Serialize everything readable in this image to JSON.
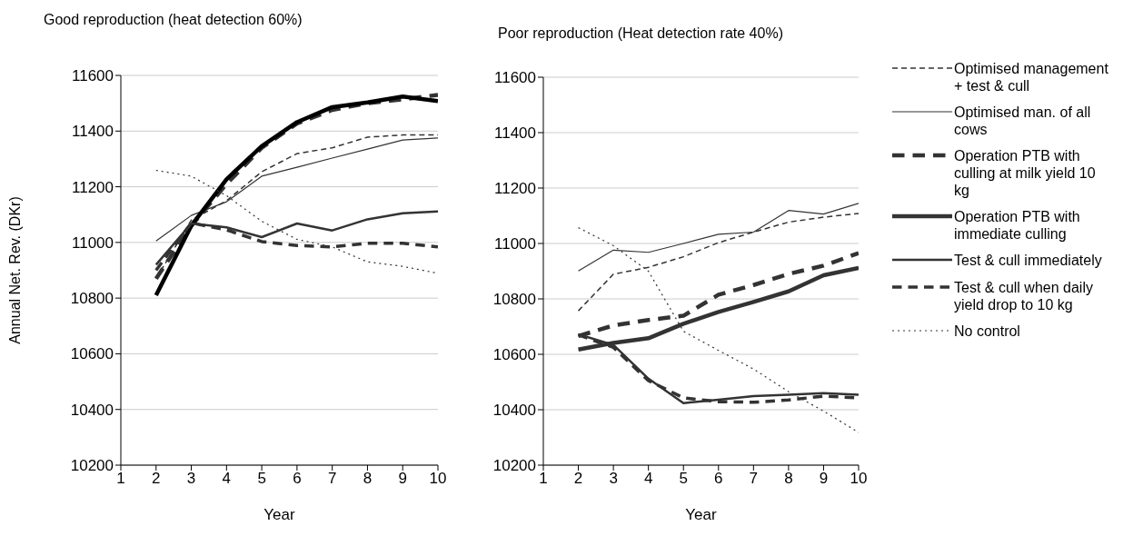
{
  "chart_data": [
    {
      "type": "line",
      "title": "Good reproduction (heat detection 60%)",
      "xlabel": "Year",
      "ylabel": "Annual Net. Rev. (DKr)",
      "x": [
        2,
        3,
        4,
        5,
        6,
        7,
        8,
        9,
        10
      ],
      "xlim": [
        1,
        10
      ],
      "xticks": [
        1,
        2,
        3,
        4,
        5,
        6,
        7,
        8,
        9,
        10
      ],
      "ylim": [
        10200,
        11600
      ],
      "yticks": [
        10200,
        10400,
        10600,
        10800,
        11000,
        11200,
        11400,
        11600
      ],
      "grid": "y",
      "marker": "none",
      "series": [
        {
          "color": "#333333",
          "line_style": "dashed",
          "values": [
            10870,
            11080,
            11150,
            11254,
            11319,
            11340,
            11378,
            11386,
            11386
          ]
        },
        {
          "color": "#333333",
          "line_style": "solid",
          "values": [
            11005,
            11097,
            11146,
            11238,
            11270,
            11303,
            11335,
            11368,
            11375
          ]
        },
        {
          "color": "#333333",
          "line_style": "dashed",
          "values": [
            10870,
            11060,
            11210,
            11340,
            11427,
            11476,
            11500,
            11514,
            11530
          ]
        },
        {
          "color": "#000000",
          "line_style": "solid",
          "values": [
            10810,
            11060,
            11227,
            11346,
            11432,
            11486,
            11503,
            11524,
            11508
          ]
        },
        {
          "color": "#333333",
          "line_style": "solid",
          "values": [
            10920,
            11068,
            11054,
            11019,
            11068,
            11043,
            11083,
            11105,
            11111
          ]
        },
        {
          "color": "#333333",
          "line_style": "dashed",
          "values": [
            10900,
            11070,
            11045,
            11003,
            10989,
            10984,
            10997,
            10997,
            10984
          ]
        },
        {
          "color": "#333333",
          "line_style": "dotted",
          "values": [
            11259,
            11238,
            11168,
            11076,
            11011,
            10984,
            10930,
            10914,
            10889
          ]
        }
      ]
    },
    {
      "type": "line",
      "title": "Poor reproduction (Heat detection rate 40%)",
      "xlabel": "Year",
      "x": [
        2,
        3,
        4,
        5,
        6,
        7,
        8,
        9,
        10
      ],
      "xlim": [
        1,
        10
      ],
      "xticks": [
        1,
        2,
        3,
        4,
        5,
        6,
        7,
        8,
        9,
        10
      ],
      "ylim": [
        10200,
        11600
      ],
      "yticks": [
        10200,
        10400,
        10600,
        10800,
        11000,
        11200,
        11400,
        11600
      ],
      "grid": "y",
      "marker": "none",
      "legend": "right",
      "series": [
        {
          "name": "Optimised management + test & cull",
          "color": "#333333",
          "line_style": "dashed",
          "values": [
            10757,
            10889,
            10914,
            10952,
            11003,
            11041,
            11077,
            11095,
            11108
          ]
        },
        {
          "name": "Optimised man. of all cows",
          "color": "#333333",
          "line_style": "solid",
          "values": [
            10901,
            10976,
            10968,
            11000,
            11033,
            11041,
            11119,
            11106,
            11145
          ]
        },
        {
          "name": "Operation PTB with culling at milk yield 10 kg",
          "color": "#333333",
          "line_style": "dashed",
          "values": [
            10666,
            10704,
            10724,
            10739,
            10815,
            10850,
            10890,
            10920,
            10965
          ]
        },
        {
          "name": "Operation PTB with immediate culling",
          "color": "#333333",
          "line_style": "solid",
          "values": [
            10617,
            10641,
            10658,
            10710,
            10753,
            10789,
            10827,
            10885,
            10912
          ]
        },
        {
          "name": "Test & cull immediately",
          "color": "#333333",
          "line_style": "solid",
          "values": [
            10672,
            10634,
            10512,
            10424,
            10436,
            10449,
            10454,
            10460,
            10454
          ]
        },
        {
          "name": "Test & cull when daily yield drop to 10 kg",
          "color": "#333333",
          "line_style": "dashed",
          "values": [
            10670,
            10625,
            10505,
            10443,
            10429,
            10427,
            10435,
            10449,
            10443
          ]
        },
        {
          "name": "No control",
          "color": "#333333",
          "line_style": "dotted",
          "values": [
            11057,
            10992,
            10900,
            10683,
            10614,
            10547,
            10465,
            10395,
            10318
          ]
        }
      ]
    }
  ]
}
